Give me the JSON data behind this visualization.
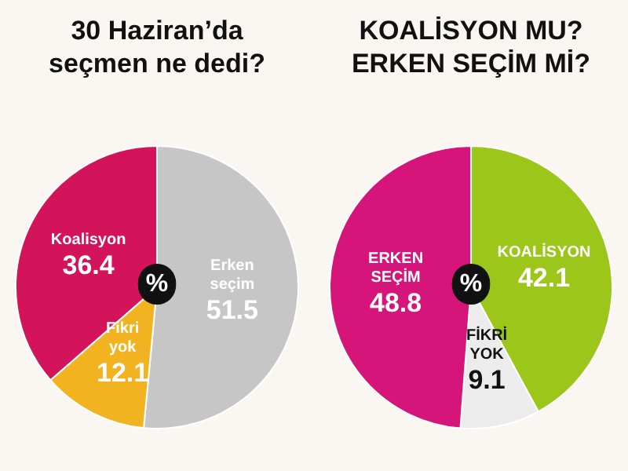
{
  "chart_data": [
    {
      "type": "pie",
      "title": "30 Haziran’da\nseçmen ne dedi?",
      "categories": [
        "Erken seçim",
        "Fikri yok",
        "Koalisyon"
      ],
      "values": [
        51.5,
        12.1,
        36.4
      ],
      "colors": [
        "#c6c6c6",
        "#f2b320",
        "#d4145a"
      ],
      "data_labels": true,
      "annotations": [
        "%"
      ]
    },
    {
      "type": "pie",
      "title": "KOALİSYON MU?\nERKEN SEÇİM Mİ?",
      "categories": [
        "KOALİSYON",
        "FİKRİ YOK",
        "ERKEN SEÇİM"
      ],
      "values": [
        42.1,
        9.1,
        48.8
      ],
      "colors": [
        "#9cc61a",
        "#ececec",
        "#d6157a"
      ],
      "data_labels": true,
      "annotations": [
        "%"
      ]
    }
  ]
}
